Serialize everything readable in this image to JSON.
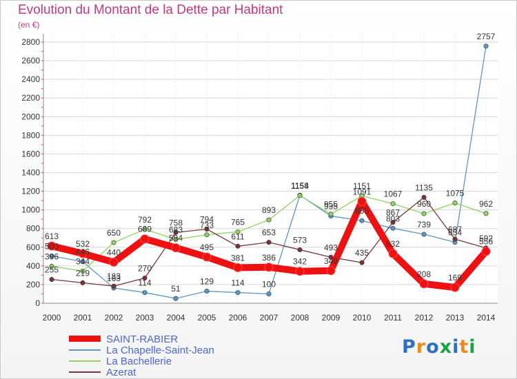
{
  "title": "Evolution du Montant de la Dette par Habitant",
  "unit": "(en €)",
  "logo": "Proxiti",
  "chart_data": {
    "type": "line",
    "title": "Evolution du Montant de la Dette par Habitant",
    "ylabel": "(en €)",
    "xlabel": "",
    "ylim": [
      0,
      2800
    ],
    "yticks": [
      0,
      200,
      400,
      600,
      800,
      1000,
      1200,
      1400,
      1600,
      1800,
      2000,
      2200,
      2400,
      2600,
      2800
    ],
    "grid": true,
    "legend": "bottom-left",
    "x": [
      "2000",
      "2001",
      "2002",
      "2003",
      "2004",
      "2005",
      "2006",
      "2007",
      "2008",
      "2009",
      "2010",
      "2011",
      "2012",
      "2013",
      "2014"
    ],
    "series": [
      {
        "name": "La Chapelle-Saint-Jean",
        "color": "#5b96c9",
        "values": [
          506,
          446,
          163,
          114,
          51,
          129,
          114,
          100,
          1158,
          935,
          885,
          803,
          739,
          654,
          2757
        ],
        "labels": [
          "506",
          "446",
          "163",
          "114",
          "51",
          "129",
          "114",
          "100",
          "1158",
          "935",
          "885",
          "803",
          "739",
          "654",
          "2757"
        ]
      },
      {
        "name": "La Bachellerie",
        "color": "#8ed25f",
        "values": [
          396,
          344,
          650,
          792,
          683,
          733,
          765,
          893,
          1154,
          955,
          1151,
          1067,
          960,
          1075,
          962
        ],
        "labels": [
          "396",
          "344",
          "650",
          "792",
          "683",
          "733",
          "765",
          "893",
          "1154",
          "955",
          "1151",
          "1067",
          "960",
          "1075",
          "962"
        ]
      },
      {
        "name": "Azerat",
        "color": "#7a3338",
        "values": [
          255,
          219,
          183,
          270,
          758,
          794,
          611,
          653,
          573,
          493,
          435,
          867,
          1135,
          687,
          592
        ],
        "labels": [
          "255",
          "219",
          "183",
          "270",
          "758",
          "794",
          "611",
          "653",
          "573",
          "493",
          "435",
          "867",
          "1135",
          "687",
          "592"
        ]
      },
      {
        "name": "SAINT-RABIER",
        "color": "#ee1111",
        "values": [
          613,
          532,
          440,
          689,
          594,
          495,
          381,
          386,
          342,
          349,
          1091,
          532,
          208,
          169,
          556
        ],
        "labels": [
          "613",
          "532",
          "440",
          "689",
          "594",
          "495",
          "381",
          "386",
          "342",
          "349",
          "1091",
          "532",
          "208",
          "169",
          "556"
        ]
      }
    ],
    "legend_order": [
      "SAINT-RABIER",
      "La Chapelle-Saint-Jean",
      "La Bachellerie",
      "Azerat"
    ]
  }
}
